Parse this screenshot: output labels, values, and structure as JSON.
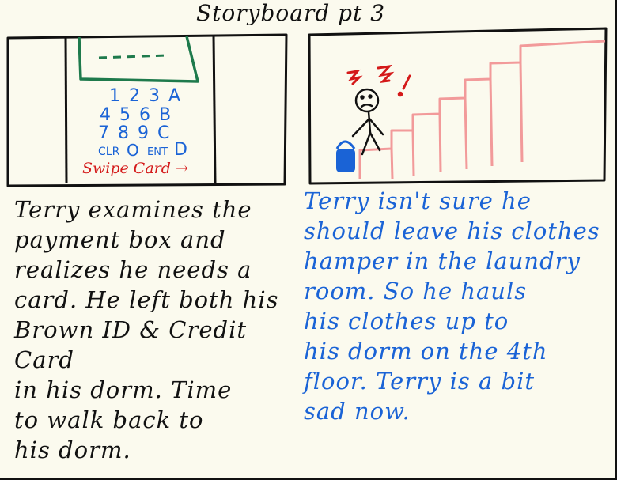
{
  "title": "Storyboard pt 3",
  "panel_left": {
    "keypad_rows": [
      "1 2 3 A",
      "4 5 6 B",
      "7 8 9 C"
    ],
    "keypad_bottom": {
      "clr": "CLR",
      "zero": "O",
      "ent": "ENT",
      "d": "D"
    },
    "swipe_label": "Swipe Card →",
    "colors": {
      "screen": "#1e7a4c",
      "keys": "#1a63d6",
      "swipe": "#d41919"
    }
  },
  "panel_right": {
    "stress_marks": "? ? !",
    "colors": {
      "stairs": "#f29a9a",
      "hamper": "#1a63d6",
      "stress": "#d41919"
    }
  },
  "caption_left": "Terry examines the\npayment box and\nrealizes he needs a\ncard. He left both his\nBrown ID & Credit Card\nin his dorm. Time\n   to walk back to\n  his dorm.",
  "caption_right": "Terry isn't sure he\nshould leave his clothes\nhamper in the laundry\nroom. So he hauls\nhis clothes up to\nhis dorm on the 4th\nfloor. Terry is a bit\nsad now."
}
